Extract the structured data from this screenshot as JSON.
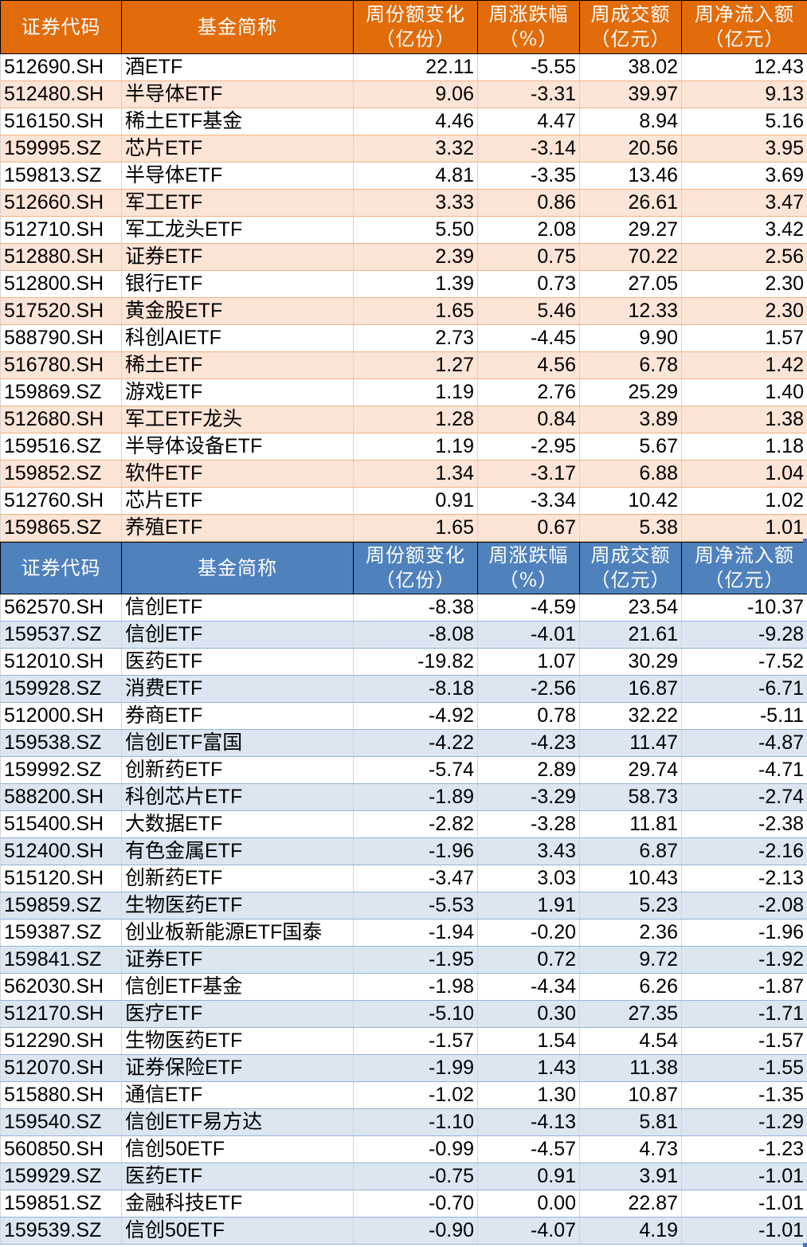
{
  "inflow_table": {
    "header_color": "#E26B0A",
    "stripe_color": "#FCE4D6",
    "columns": [
      {
        "line1": "证券代码",
        "line2": ""
      },
      {
        "line1": "基金简称",
        "line2": ""
      },
      {
        "line1": "周份额变化",
        "line2": "（亿份）"
      },
      {
        "line1": "周涨跌幅",
        "line2": "（%）"
      },
      {
        "line1": "周成交额",
        "line2": "（亿元）"
      },
      {
        "line1": "周净流入额",
        "line2": "（亿元）"
      }
    ],
    "rows": [
      {
        "code": "512690.SH",
        "name": "酒ETF",
        "share_change": "22.11",
        "pct_change": "-5.55",
        "turnover": "38.02",
        "net_inflow": "12.43"
      },
      {
        "code": "512480.SH",
        "name": "半导体ETF",
        "share_change": "9.06",
        "pct_change": "-3.31",
        "turnover": "39.97",
        "net_inflow": "9.13"
      },
      {
        "code": "516150.SH",
        "name": "稀土ETF基金",
        "share_change": "4.46",
        "pct_change": "4.47",
        "turnover": "8.94",
        "net_inflow": "5.16"
      },
      {
        "code": "159995.SZ",
        "name": "芯片ETF",
        "share_change": "3.32",
        "pct_change": "-3.14",
        "turnover": "20.56",
        "net_inflow": "3.95"
      },
      {
        "code": "159813.SZ",
        "name": "半导体ETF",
        "share_change": "4.81",
        "pct_change": "-3.35",
        "turnover": "13.46",
        "net_inflow": "3.69"
      },
      {
        "code": "512660.SH",
        "name": "军工ETF",
        "share_change": "3.33",
        "pct_change": "0.86",
        "turnover": "26.61",
        "net_inflow": "3.47"
      },
      {
        "code": "512710.SH",
        "name": "军工龙头ETF",
        "share_change": "5.50",
        "pct_change": "2.08",
        "turnover": "29.27",
        "net_inflow": "3.42"
      },
      {
        "code": "512880.SH",
        "name": "证券ETF",
        "share_change": "2.39",
        "pct_change": "0.75",
        "turnover": "70.22",
        "net_inflow": "2.56"
      },
      {
        "code": "512800.SH",
        "name": "银行ETF",
        "share_change": "1.39",
        "pct_change": "0.73",
        "turnover": "27.05",
        "net_inflow": "2.30"
      },
      {
        "code": "517520.SH",
        "name": "黄金股ETF",
        "share_change": "1.65",
        "pct_change": "5.46",
        "turnover": "12.33",
        "net_inflow": "2.30"
      },
      {
        "code": "588790.SH",
        "name": "科创AIETF",
        "share_change": "2.73",
        "pct_change": "-4.45",
        "turnover": "9.90",
        "net_inflow": "1.57"
      },
      {
        "code": "516780.SH",
        "name": "稀土ETF",
        "share_change": "1.27",
        "pct_change": "4.56",
        "turnover": "6.78",
        "net_inflow": "1.42"
      },
      {
        "code": "159869.SZ",
        "name": "游戏ETF",
        "share_change": "1.19",
        "pct_change": "2.76",
        "turnover": "25.29",
        "net_inflow": "1.40"
      },
      {
        "code": "512680.SH",
        "name": "军工ETF龙头",
        "share_change": "1.28",
        "pct_change": "0.84",
        "turnover": "3.89",
        "net_inflow": "1.38"
      },
      {
        "code": "159516.SZ",
        "name": "半导体设备ETF",
        "share_change": "1.19",
        "pct_change": "-2.95",
        "turnover": "5.67",
        "net_inflow": "1.18"
      },
      {
        "code": "159852.SZ",
        "name": "软件ETF",
        "share_change": "1.34",
        "pct_change": "-3.17",
        "turnover": "6.88",
        "net_inflow": "1.04"
      },
      {
        "code": "512760.SH",
        "name": "芯片ETF",
        "share_change": "0.91",
        "pct_change": "-3.34",
        "turnover": "10.42",
        "net_inflow": "1.02"
      },
      {
        "code": "159865.SZ",
        "name": "养殖ETF",
        "share_change": "1.65",
        "pct_change": "0.67",
        "turnover": "5.38",
        "net_inflow": "1.01"
      }
    ]
  },
  "outflow_table": {
    "header_color": "#4F81BD",
    "stripe_color": "#DCE6F1",
    "columns": [
      {
        "line1": "证券代码",
        "line2": ""
      },
      {
        "line1": "基金简称",
        "line2": ""
      },
      {
        "line1": "周份额变化",
        "line2": "（亿份）"
      },
      {
        "line1": "周涨跌幅",
        "line2": "（%）"
      },
      {
        "line1": "周成交额",
        "line2": "（亿元）"
      },
      {
        "line1": "周净流入额",
        "line2": "（亿元）"
      }
    ],
    "rows": [
      {
        "code": "562570.SH",
        "name": "信创ETF",
        "share_change": "-8.38",
        "pct_change": "-4.59",
        "turnover": "23.54",
        "net_inflow": "-10.37"
      },
      {
        "code": "159537.SZ",
        "name": "信创ETF",
        "share_change": "-8.08",
        "pct_change": "-4.01",
        "turnover": "21.61",
        "net_inflow": "-9.28"
      },
      {
        "code": "512010.SH",
        "name": "医药ETF",
        "share_change": "-19.82",
        "pct_change": "1.07",
        "turnover": "30.29",
        "net_inflow": "-7.52"
      },
      {
        "code": "159928.SZ",
        "name": "消费ETF",
        "share_change": "-8.18",
        "pct_change": "-2.56",
        "turnover": "16.87",
        "net_inflow": "-6.71"
      },
      {
        "code": "512000.SH",
        "name": "券商ETF",
        "share_change": "-4.92",
        "pct_change": "0.78",
        "turnover": "32.22",
        "net_inflow": "-5.11"
      },
      {
        "code": "159538.SZ",
        "name": "信创ETF富国",
        "share_change": "-4.22",
        "pct_change": "-4.23",
        "turnover": "11.47",
        "net_inflow": "-4.87"
      },
      {
        "code": "159992.SZ",
        "name": "创新药ETF",
        "share_change": "-5.74",
        "pct_change": "2.89",
        "turnover": "29.74",
        "net_inflow": "-4.71"
      },
      {
        "code": "588200.SH",
        "name": "科创芯片ETF",
        "share_change": "-1.89",
        "pct_change": "-3.29",
        "turnover": "58.73",
        "net_inflow": "-2.74"
      },
      {
        "code": "515400.SH",
        "name": "大数据ETF",
        "share_change": "-2.82",
        "pct_change": "-3.28",
        "turnover": "11.81",
        "net_inflow": "-2.38"
      },
      {
        "code": "512400.SH",
        "name": "有色金属ETF",
        "share_change": "-1.96",
        "pct_change": "3.43",
        "turnover": "6.87",
        "net_inflow": "-2.16"
      },
      {
        "code": "515120.SH",
        "name": "创新药ETF",
        "share_change": "-3.47",
        "pct_change": "3.03",
        "turnover": "10.43",
        "net_inflow": "-2.13"
      },
      {
        "code": "159859.SZ",
        "name": "生物医药ETF",
        "share_change": "-5.53",
        "pct_change": "1.91",
        "turnover": "5.23",
        "net_inflow": "-2.08"
      },
      {
        "code": "159387.SZ",
        "name": "创业板新能源ETF国泰",
        "share_change": "-1.94",
        "pct_change": "-0.20",
        "turnover": "2.36",
        "net_inflow": "-1.96"
      },
      {
        "code": "159841.SZ",
        "name": "证券ETF",
        "share_change": "-1.95",
        "pct_change": "0.72",
        "turnover": "9.72",
        "net_inflow": "-1.92"
      },
      {
        "code": "562030.SH",
        "name": "信创ETF基金",
        "share_change": "-1.98",
        "pct_change": "-4.34",
        "turnover": "6.26",
        "net_inflow": "-1.87"
      },
      {
        "code": "512170.SH",
        "name": "医疗ETF",
        "share_change": "-5.10",
        "pct_change": "0.30",
        "turnover": "27.35",
        "net_inflow": "-1.71"
      },
      {
        "code": "512290.SH",
        "name": "生物医药ETF",
        "share_change": "-1.57",
        "pct_change": "1.54",
        "turnover": "4.54",
        "net_inflow": "-1.57"
      },
      {
        "code": "512070.SH",
        "name": "证券保险ETF",
        "share_change": "-1.99",
        "pct_change": "1.43",
        "turnover": "11.38",
        "net_inflow": "-1.55"
      },
      {
        "code": "515880.SH",
        "name": "通信ETF",
        "share_change": "-1.02",
        "pct_change": "1.30",
        "turnover": "10.87",
        "net_inflow": "-1.35"
      },
      {
        "code": "159540.SZ",
        "name": "信创ETF易方达",
        "share_change": "-1.10",
        "pct_change": "-4.13",
        "turnover": "5.81",
        "net_inflow": "-1.29"
      },
      {
        "code": "560850.SH",
        "name": "信创50ETF",
        "share_change": "-0.99",
        "pct_change": "-4.57",
        "turnover": "4.73",
        "net_inflow": "-1.23"
      },
      {
        "code": "159929.SZ",
        "name": "医药ETF",
        "share_change": "-0.75",
        "pct_change": "0.91",
        "turnover": "3.91",
        "net_inflow": "-1.01"
      },
      {
        "code": "159851.SZ",
        "name": "金融科技ETF",
        "share_change": "-0.70",
        "pct_change": "0.00",
        "turnover": "22.87",
        "net_inflow": "-1.01"
      },
      {
        "code": "159539.SZ",
        "name": "信创50ETF",
        "share_change": "-0.90",
        "pct_change": "-4.07",
        "turnover": "4.19",
        "net_inflow": "-1.01"
      }
    ]
  }
}
